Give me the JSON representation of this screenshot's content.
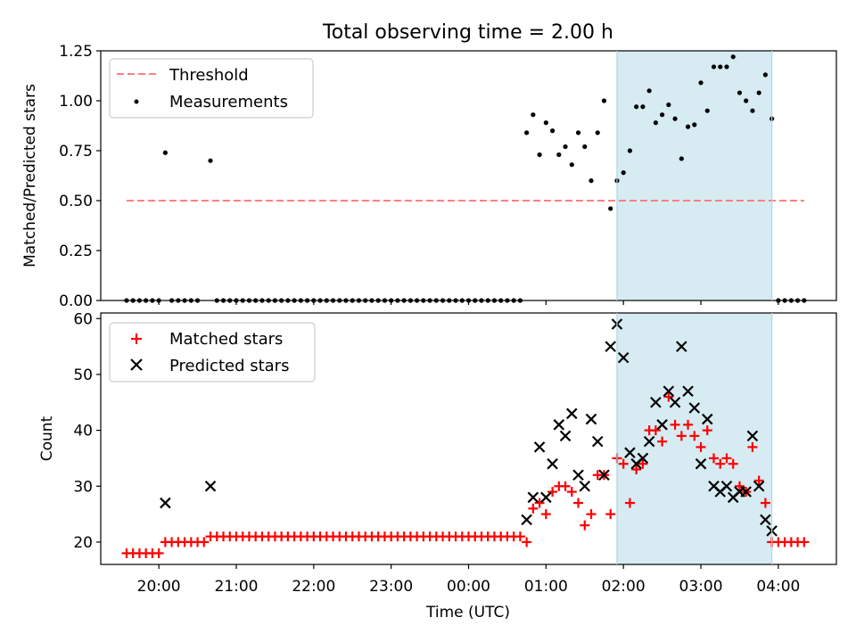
{
  "title": "Total observing time = 2.00 h",
  "colors": {
    "threshold": "#ff7f7f",
    "highlight": "#add8e6",
    "matched": "#ff0000",
    "predicted": "#000000",
    "measurements": "#000000"
  },
  "chart_data": [
    {
      "type": "scatter",
      "ylabel": "Matched/Predicted stars",
      "ylim": [
        0,
        1.25
      ],
      "yticks": [
        "0.00",
        "0.25",
        "0.50",
        "0.75",
        "1.00",
        "1.25"
      ],
      "ytick_values": [
        0,
        0.25,
        0.5,
        0.75,
        1.0,
        1.25
      ],
      "legend": {
        "placement": "upper left",
        "entries": [
          "Threshold",
          "Measurements"
        ]
      },
      "threshold": {
        "name": "Threshold",
        "value": 0.5,
        "x_range": [
          "19:35",
          "04:20"
        ]
      },
      "highlight": {
        "start": "01:55",
        "end": "03:55"
      },
      "series": [
        {
          "name": "Measurements",
          "points": [
            [
              "19:35",
              0
            ],
            [
              "19:40",
              0
            ],
            [
              "19:45",
              0
            ],
            [
              "19:50",
              0
            ],
            [
              "19:55",
              0
            ],
            [
              "20:00",
              0
            ],
            [
              "20:05",
              0.74
            ],
            [
              "20:10",
              0
            ],
            [
              "20:15",
              0
            ],
            [
              "20:20",
              0
            ],
            [
              "20:25",
              0
            ],
            [
              "20:30",
              0
            ],
            [
              "20:40",
              0.7
            ],
            [
              "20:45",
              0
            ],
            [
              "20:50",
              0
            ],
            [
              "20:55",
              0
            ],
            [
              "21:00",
              0
            ],
            [
              "21:05",
              0
            ],
            [
              "21:10",
              0
            ],
            [
              "21:15",
              0
            ],
            [
              "21:20",
              0
            ],
            [
              "21:25",
              0
            ],
            [
              "21:30",
              0
            ],
            [
              "21:35",
              0
            ],
            [
              "21:40",
              0
            ],
            [
              "21:45",
              0
            ],
            [
              "21:50",
              0
            ],
            [
              "21:55",
              0
            ],
            [
              "22:00",
              0
            ],
            [
              "22:05",
              0
            ],
            [
              "22:10",
              0
            ],
            [
              "22:15",
              0
            ],
            [
              "22:20",
              0
            ],
            [
              "22:25",
              0
            ],
            [
              "22:30",
              0
            ],
            [
              "22:35",
              0
            ],
            [
              "22:40",
              0
            ],
            [
              "22:45",
              0
            ],
            [
              "22:50",
              0
            ],
            [
              "22:55",
              0
            ],
            [
              "23:00",
              0
            ],
            [
              "23:05",
              0
            ],
            [
              "23:10",
              0
            ],
            [
              "23:15",
              0
            ],
            [
              "23:20",
              0
            ],
            [
              "23:25",
              0
            ],
            [
              "23:30",
              0
            ],
            [
              "23:35",
              0
            ],
            [
              "23:40",
              0
            ],
            [
              "23:45",
              0
            ],
            [
              "23:50",
              0
            ],
            [
              "23:55",
              0
            ],
            [
              "00:00",
              0
            ],
            [
              "00:05",
              0
            ],
            [
              "00:10",
              0
            ],
            [
              "00:15",
              0
            ],
            [
              "00:20",
              0
            ],
            [
              "00:25",
              0
            ],
            [
              "00:30",
              0
            ],
            [
              "00:35",
              0
            ],
            [
              "00:40",
              0
            ],
            [
              "00:45",
              0.84
            ],
            [
              "00:50",
              0.93
            ],
            [
              "00:55",
              0.73
            ],
            [
              "01:00",
              0.89
            ],
            [
              "01:05",
              0.85
            ],
            [
              "01:10",
              0.73
            ],
            [
              "01:15",
              0.77
            ],
            [
              "01:20",
              0.68
            ],
            [
              "01:25",
              0.84
            ],
            [
              "01:30",
              0.77
            ],
            [
              "01:35",
              0.6
            ],
            [
              "01:40",
              0.84
            ],
            [
              "01:45",
              1.0
            ],
            [
              "01:50",
              0.46
            ],
            [
              "01:55",
              0.6
            ],
            [
              "02:00",
              0.64
            ],
            [
              "02:05",
              0.75
            ],
            [
              "02:10",
              0.97
            ],
            [
              "02:15",
              0.97
            ],
            [
              "02:20",
              1.05
            ],
            [
              "02:25",
              0.89
            ],
            [
              "02:30",
              0.93
            ],
            [
              "02:35",
              0.98
            ],
            [
              "02:40",
              0.91
            ],
            [
              "02:45",
              0.71
            ],
            [
              "02:50",
              0.87
            ],
            [
              "02:55",
              0.88
            ],
            [
              "03:00",
              1.09
            ],
            [
              "03:05",
              0.95
            ],
            [
              "03:10",
              1.17
            ],
            [
              "03:15",
              1.17
            ],
            [
              "03:20",
              1.17
            ],
            [
              "03:25",
              1.22
            ],
            [
              "03:30",
              1.04
            ],
            [
              "03:35",
              1.0
            ],
            [
              "03:40",
              0.95
            ],
            [
              "03:45",
              1.04
            ],
            [
              "03:50",
              1.13
            ],
            [
              "03:55",
              0.91
            ],
            [
              "04:00",
              0
            ],
            [
              "04:05",
              0
            ],
            [
              "04:10",
              0
            ],
            [
              "04:15",
              0
            ],
            [
              "04:20",
              0
            ]
          ]
        }
      ]
    },
    {
      "type": "scatter",
      "xlabel": "Time (UTC)",
      "ylabel": "Count",
      "ylim": [
        16,
        61
      ],
      "yticks": [
        "20",
        "30",
        "40",
        "50",
        "60"
      ],
      "ytick_values": [
        20,
        30,
        40,
        50,
        60
      ],
      "xticks": [
        "20:00",
        "21:00",
        "22:00",
        "23:00",
        "00:00",
        "01:00",
        "02:00",
        "03:00",
        "04:00"
      ],
      "xlim": [
        "19:15",
        "04:45"
      ],
      "legend": {
        "placement": "upper left",
        "entries": [
          "Matched stars",
          "Predicted stars"
        ]
      },
      "highlight": {
        "start": "01:55",
        "end": "03:55"
      },
      "series": [
        {
          "name": "Matched stars",
          "points": [
            [
              "19:35",
              18
            ],
            [
              "19:40",
              18
            ],
            [
              "19:45",
              18
            ],
            [
              "19:50",
              18
            ],
            [
              "19:55",
              18
            ],
            [
              "20:00",
              18
            ],
            [
              "20:05",
              20
            ],
            [
              "20:10",
              20
            ],
            [
              "20:15",
              20
            ],
            [
              "20:20",
              20
            ],
            [
              "20:25",
              20
            ],
            [
              "20:30",
              20
            ],
            [
              "20:35",
              20
            ],
            [
              "20:40",
              21
            ],
            [
              "20:45",
              21
            ],
            [
              "20:50",
              21
            ],
            [
              "20:55",
              21
            ],
            [
              "21:00",
              21
            ],
            [
              "21:05",
              21
            ],
            [
              "21:10",
              21
            ],
            [
              "21:15",
              21
            ],
            [
              "21:20",
              21
            ],
            [
              "21:25",
              21
            ],
            [
              "21:30",
              21
            ],
            [
              "21:35",
              21
            ],
            [
              "21:40",
              21
            ],
            [
              "21:45",
              21
            ],
            [
              "21:50",
              21
            ],
            [
              "21:55",
              21
            ],
            [
              "22:00",
              21
            ],
            [
              "22:05",
              21
            ],
            [
              "22:10",
              21
            ],
            [
              "22:15",
              21
            ],
            [
              "22:20",
              21
            ],
            [
              "22:25",
              21
            ],
            [
              "22:30",
              21
            ],
            [
              "22:35",
              21
            ],
            [
              "22:40",
              21
            ],
            [
              "22:45",
              21
            ],
            [
              "22:50",
              21
            ],
            [
              "22:55",
              21
            ],
            [
              "23:00",
              21
            ],
            [
              "23:05",
              21
            ],
            [
              "23:10",
              21
            ],
            [
              "23:15",
              21
            ],
            [
              "23:20",
              21
            ],
            [
              "23:25",
              21
            ],
            [
              "23:30",
              21
            ],
            [
              "23:35",
              21
            ],
            [
              "23:40",
              21
            ],
            [
              "23:45",
              21
            ],
            [
              "23:50",
              21
            ],
            [
              "23:55",
              21
            ],
            [
              "00:00",
              21
            ],
            [
              "00:05",
              21
            ],
            [
              "00:10",
              21
            ],
            [
              "00:15",
              21
            ],
            [
              "00:20",
              21
            ],
            [
              "00:25",
              21
            ],
            [
              "00:30",
              21
            ],
            [
              "00:35",
              21
            ],
            [
              "00:40",
              21
            ],
            [
              "00:45",
              20
            ],
            [
              "00:50",
              26
            ],
            [
              "00:55",
              27
            ],
            [
              "01:00",
              25
            ],
            [
              "01:05",
              29
            ],
            [
              "01:10",
              30
            ],
            [
              "01:15",
              30
            ],
            [
              "01:20",
              29
            ],
            [
              "01:25",
              27
            ],
            [
              "01:30",
              23
            ],
            [
              "01:35",
              25
            ],
            [
              "01:40",
              32
            ],
            [
              "01:45",
              32
            ],
            [
              "01:50",
              25
            ],
            [
              "01:55",
              35
            ],
            [
              "02:00",
              34
            ],
            [
              "02:05",
              27
            ],
            [
              "02:10",
              33
            ],
            [
              "02:15",
              34
            ],
            [
              "02:20",
              40
            ],
            [
              "02:25",
              40
            ],
            [
              "02:30",
              38
            ],
            [
              "02:35",
              46
            ],
            [
              "02:40",
              41
            ],
            [
              "02:45",
              39
            ],
            [
              "02:50",
              41
            ],
            [
              "02:55",
              39
            ],
            [
              "03:00",
              37
            ],
            [
              "03:05",
              40
            ],
            [
              "03:10",
              35
            ],
            [
              "03:15",
              34
            ],
            [
              "03:20",
              35
            ],
            [
              "03:25",
              34
            ],
            [
              "03:30",
              30
            ],
            [
              "03:35",
              29
            ],
            [
              "03:40",
              37
            ],
            [
              "03:45",
              31
            ],
            [
              "03:50",
              27
            ],
            [
              "03:55",
              20
            ],
            [
              "04:00",
              20
            ],
            [
              "04:05",
              20
            ],
            [
              "04:10",
              20
            ],
            [
              "04:15",
              20
            ],
            [
              "04:20",
              20
            ]
          ]
        },
        {
          "name": "Predicted stars",
          "points": [
            [
              "20:05",
              27
            ],
            [
              "20:40",
              30
            ],
            [
              "00:45",
              24
            ],
            [
              "00:50",
              28
            ],
            [
              "00:55",
              37
            ],
            [
              "01:00",
              28
            ],
            [
              "01:05",
              34
            ],
            [
              "01:10",
              41
            ],
            [
              "01:15",
              39
            ],
            [
              "01:20",
              43
            ],
            [
              "01:25",
              32
            ],
            [
              "01:30",
              30
            ],
            [
              "01:35",
              42
            ],
            [
              "01:40",
              38
            ],
            [
              "01:45",
              32
            ],
            [
              "01:50",
              55
            ],
            [
              "01:55",
              59
            ],
            [
              "02:00",
              53
            ],
            [
              "02:05",
              36
            ],
            [
              "02:10",
              34
            ],
            [
              "02:15",
              35
            ],
            [
              "02:20",
              38
            ],
            [
              "02:25",
              45
            ],
            [
              "02:30",
              41
            ],
            [
              "02:35",
              47
            ],
            [
              "02:40",
              45
            ],
            [
              "02:45",
              55
            ],
            [
              "02:50",
              47
            ],
            [
              "02:55",
              44
            ],
            [
              "03:00",
              34
            ],
            [
              "03:05",
              42
            ],
            [
              "03:10",
              30
            ],
            [
              "03:15",
              29
            ],
            [
              "03:20",
              30
            ],
            [
              "03:25",
              28
            ],
            [
              "03:30",
              29
            ],
            [
              "03:35",
              29
            ],
            [
              "03:40",
              39
            ],
            [
              "03:45",
              30
            ],
            [
              "03:50",
              24
            ],
            [
              "03:55",
              22
            ]
          ]
        }
      ]
    }
  ]
}
